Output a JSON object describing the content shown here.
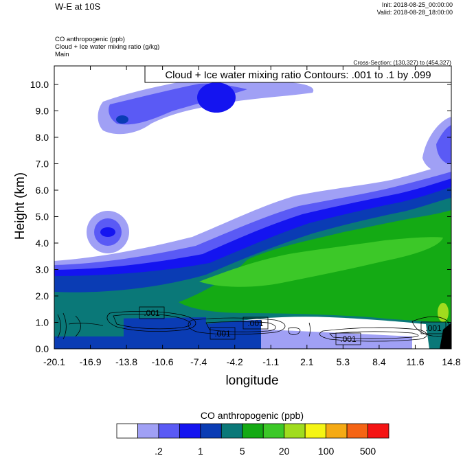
{
  "header": {
    "title": "W-E at 10S",
    "init": "Init: 2018-08-25_00:00:00",
    "valid": "Valid: 2018-08-28_18:00:00",
    "fields": [
      "CO anthropogenic   (ppb)",
      "Cloud + Ice water mixing ratio   (g/kg)",
      "Main"
    ],
    "cross_section": "Cross-Section: (130,327) to (454,327)"
  },
  "chart_data": {
    "type": "heatmap",
    "contour_title": "Cloud + Ice water mixing ratio Contours: .001 to .1 by .099",
    "xlabel": "longitude",
    "ylabel": "Height (km)",
    "x_ticks": [
      "-20.1",
      "-16.9",
      "-13.8",
      "-10.6",
      "-7.4",
      "-4.2",
      "-1.1",
      "2.1",
      "5.3",
      "8.4",
      "11.6",
      "14.8"
    ],
    "y_ticks": [
      "0.0",
      "1.0",
      "2.0",
      "3.0",
      "4.0",
      "5.0",
      "6.0",
      "7.0",
      "8.0",
      "9.0",
      "10.0"
    ],
    "xlim": [
      -20.1,
      14.8
    ],
    "ylim": [
      0,
      10.7
    ],
    "contour_labels": [
      ".001",
      ".001",
      ".001",
      ".001",
      ".001"
    ],
    "colorbar": {
      "title": "CO anthropogenic  (ppb)",
      "colors": [
        "#ffffff",
        "#a0a0f5",
        "#5a5af5",
        "#1414f0",
        "#0a3cb4",
        "#0a7878",
        "#14aa14",
        "#3cc828",
        "#a0dc1e",
        "#f5f514",
        "#f5aa14",
        "#f56414",
        "#f51414"
      ],
      "labels": [
        ".2",
        "1",
        "5",
        "20",
        "100",
        "500"
      ]
    }
  }
}
